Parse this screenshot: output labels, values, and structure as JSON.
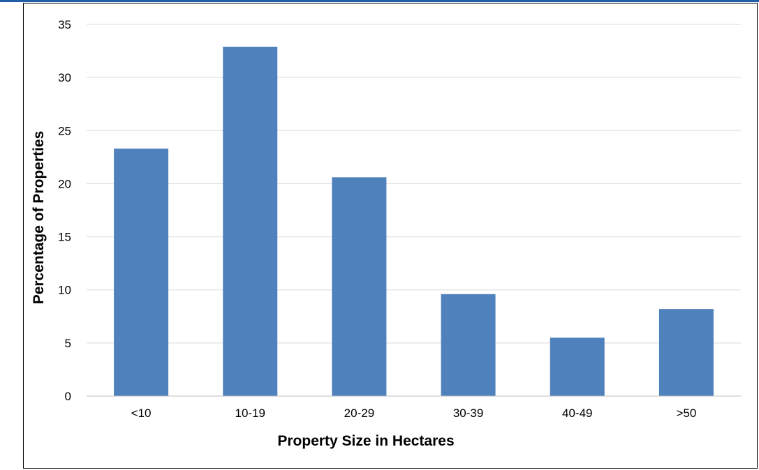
{
  "chart_data": {
    "type": "bar",
    "title": "",
    "xlabel": "Property Size in Hectares",
    "ylabel": "Percentage of Properties",
    "categories": [
      "<10",
      "10-19",
      "20-29",
      "30-39",
      "40-49",
      ">50"
    ],
    "values": [
      23.3,
      32.9,
      20.6,
      9.6,
      5.5,
      8.2
    ],
    "ylim": [
      0,
      35
    ],
    "yticks": [
      0,
      5,
      10,
      15,
      20,
      25,
      30,
      35
    ],
    "ytick_labels": [
      "0",
      "5",
      "10",
      "15",
      "20",
      "25",
      "30",
      "35"
    ],
    "grid": true,
    "legend": "none",
    "colors": {
      "bar": "#4f81bd",
      "grid": "#d9d9d9",
      "axis": "#bfbfbf",
      "top_strip": "#1f5fa8"
    }
  }
}
